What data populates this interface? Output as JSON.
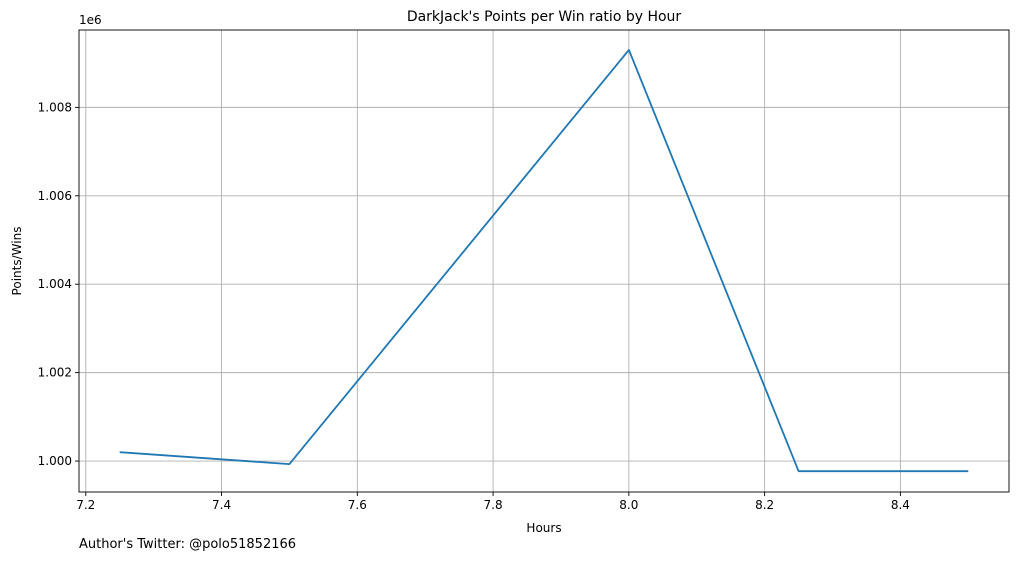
{
  "chart_data": {
    "type": "line",
    "title": "DarkJack's Points per Win ratio by Hour",
    "xlabel": "Hours",
    "ylabel": "Points/Wins",
    "y_offset_label": "1e6",
    "xlim": [
      7.19,
      8.56
    ],
    "ylim": [
      999.3,
      1009.75
    ],
    "x_ticks": [
      7.2,
      7.4,
      7.6,
      7.8,
      8.0,
      8.2,
      8.4
    ],
    "x_tick_labels": [
      "7.2",
      "7.4",
      "7.6",
      "7.8",
      "8.0",
      "8.2",
      "8.4"
    ],
    "y_ticks": [
      1000,
      1002,
      1004,
      1006,
      1008
    ],
    "y_tick_labels": [
      "1.000",
      "1.002",
      "1.004",
      "1.006",
      "1.008"
    ],
    "grid": true,
    "series": [
      {
        "color": "#1f77b4",
        "x": [
          7.25,
          7.5,
          8.0,
          8.25,
          8.5
        ],
        "y": [
          1000.2,
          999.93,
          1009.3,
          999.77,
          999.77
        ]
      }
    ]
  },
  "footer": {
    "text": "Author's Twitter: @polo51852166"
  }
}
